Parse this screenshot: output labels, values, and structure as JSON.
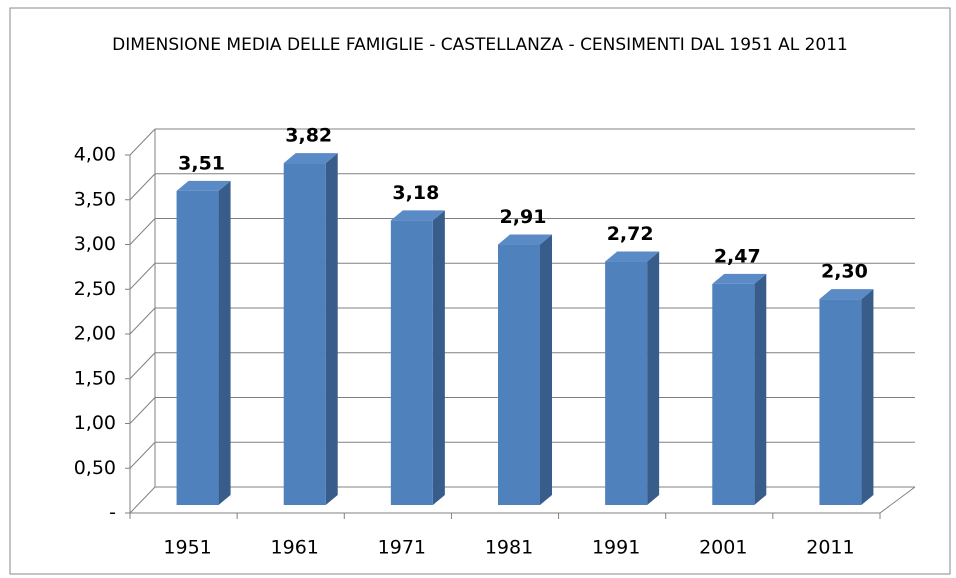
{
  "chart_data": {
    "type": "bar3d",
    "title": "DIMENSIONE MEDIA DELLE FAMIGLIE - CASTELLANZA - CENSIMENTI DAL 1951 AL 2011",
    "categories": [
      "1951",
      "1961",
      "1971",
      "1981",
      "1991",
      "2001",
      "2011"
    ],
    "values": [
      3.51,
      3.82,
      3.18,
      2.91,
      2.72,
      2.47,
      2.3
    ],
    "value_labels": [
      "3,51",
      "3,82",
      "3,18",
      "2,91",
      "2,72",
      "2,47",
      "2,30"
    ],
    "color": "#4f81bd",
    "ylim": [
      0,
      4
    ],
    "yticks": [
      {
        "value": 0,
        "label": "-"
      },
      {
        "value": 0.5,
        "label": "0,50"
      },
      {
        "value": 1,
        "label": "1,00"
      },
      {
        "value": 1.5,
        "label": "1,50"
      },
      {
        "value": 2,
        "label": "2,00"
      },
      {
        "value": 2.5,
        "label": "2,50"
      },
      {
        "value": 3,
        "label": "3,00"
      },
      {
        "value": 3.5,
        "label": "3,50"
      },
      {
        "value": 4,
        "label": "4,00"
      }
    ],
    "grid": true
  }
}
